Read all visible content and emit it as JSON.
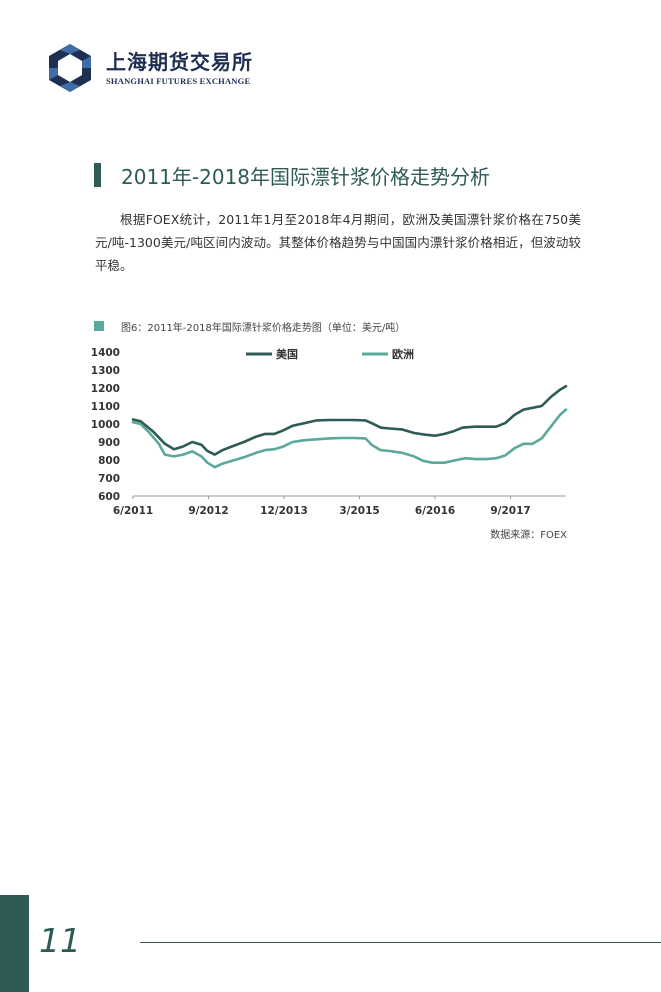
{
  "header": {
    "logo_cn": "上海期货交易所",
    "logo_en": "SHANGHAI FUTURES EXCHANGE",
    "logo_icon": "hexagon-ring-icon"
  },
  "section": {
    "title": "2011年-2018年国际漂针浆价格走势分析",
    "paragraph": "根据FOEX统计，2011年1月至2018年4月期间，欧洲及美国漂针浆价格在750美元/吨-1300美元/吨区间内波动。其整体价格趋势与中国国内漂针浆价格相近，但波动较平稳。"
  },
  "figure": {
    "caption": "图6：2011年-2018年国际漂针浆价格走势图（单位：美元/吨）",
    "source": "数据来源：FOEX"
  },
  "colors": {
    "accent": "#2e5b55",
    "usa": "#2e5b55",
    "europe": "#5ba89c",
    "logo": "#1f2f52"
  },
  "chart_data": {
    "type": "line",
    "title": "",
    "xlabel": "",
    "ylabel": "",
    "ylim": [
      600,
      1400
    ],
    "yticks": [
      600,
      700,
      800,
      900,
      1000,
      1100,
      1200,
      1300,
      1400
    ],
    "xticks": [
      "6/2011",
      "9/2012",
      "12/2013",
      "3/2015",
      "6/2016",
      "9/2017"
    ],
    "xrange": [
      2011.375,
      2018.5
    ],
    "legend": "top",
    "grid": false,
    "series": [
      {
        "name": "美国",
        "color": "#2e5b55",
        "points": [
          [
            2011.375,
            1025
          ],
          [
            2011.5,
            1015
          ],
          [
            2011.7,
            960
          ],
          [
            2011.9,
            890
          ],
          [
            2012.05,
            860
          ],
          [
            2012.2,
            875
          ],
          [
            2012.35,
            900
          ],
          [
            2012.5,
            885
          ],
          [
            2012.6,
            850
          ],
          [
            2012.72,
            830
          ],
          [
            2012.85,
            855
          ],
          [
            2013.0,
            875
          ],
          [
            2013.2,
            900
          ],
          [
            2013.4,
            930
          ],
          [
            2013.55,
            945
          ],
          [
            2013.7,
            945
          ],
          [
            2013.85,
            965
          ],
          [
            2014.0,
            990
          ],
          [
            2014.2,
            1005
          ],
          [
            2014.4,
            1020
          ],
          [
            2014.6,
            1022
          ],
          [
            2014.8,
            1022
          ],
          [
            2015.0,
            1022
          ],
          [
            2015.2,
            1020
          ],
          [
            2015.3,
            1005
          ],
          [
            2015.45,
            980
          ],
          [
            2015.6,
            975
          ],
          [
            2015.8,
            970
          ],
          [
            2016.0,
            950
          ],
          [
            2016.2,
            940
          ],
          [
            2016.35,
            935
          ],
          [
            2016.5,
            945
          ],
          [
            2016.65,
            960
          ],
          [
            2016.8,
            980
          ],
          [
            2017.0,
            985
          ],
          [
            2017.2,
            985
          ],
          [
            2017.35,
            985
          ],
          [
            2017.5,
            1005
          ],
          [
            2017.65,
            1050
          ],
          [
            2017.8,
            1080
          ],
          [
            2017.95,
            1090
          ],
          [
            2018.1,
            1100
          ],
          [
            2018.25,
            1150
          ],
          [
            2018.4,
            1190
          ],
          [
            2018.5,
            1210
          ]
        ]
      },
      {
        "name": "欧洲",
        "color": "#5ba89c",
        "points": [
          [
            2011.375,
            1010
          ],
          [
            2011.5,
            1000
          ],
          [
            2011.65,
            950
          ],
          [
            2011.8,
            890
          ],
          [
            2011.9,
            830
          ],
          [
            2012.05,
            820
          ],
          [
            2012.2,
            830
          ],
          [
            2012.35,
            848
          ],
          [
            2012.5,
            820
          ],
          [
            2012.6,
            785
          ],
          [
            2012.72,
            760
          ],
          [
            2012.85,
            780
          ],
          [
            2013.0,
            795
          ],
          [
            2013.2,
            815
          ],
          [
            2013.4,
            840
          ],
          [
            2013.55,
            855
          ],
          [
            2013.7,
            860
          ],
          [
            2013.85,
            875
          ],
          [
            2014.0,
            900
          ],
          [
            2014.2,
            910
          ],
          [
            2014.4,
            915
          ],
          [
            2014.6,
            920
          ],
          [
            2014.8,
            922
          ],
          [
            2015.0,
            922
          ],
          [
            2015.2,
            920
          ],
          [
            2015.3,
            885
          ],
          [
            2015.45,
            855
          ],
          [
            2015.6,
            850
          ],
          [
            2015.8,
            840
          ],
          [
            2016.0,
            820
          ],
          [
            2016.15,
            795
          ],
          [
            2016.3,
            785
          ],
          [
            2016.5,
            785
          ],
          [
            2016.7,
            800
          ],
          [
            2016.85,
            810
          ],
          [
            2017.0,
            805
          ],
          [
            2017.2,
            805
          ],
          [
            2017.35,
            810
          ],
          [
            2017.5,
            825
          ],
          [
            2017.65,
            865
          ],
          [
            2017.8,
            890
          ],
          [
            2017.95,
            890
          ],
          [
            2018.1,
            920
          ],
          [
            2018.25,
            985
          ],
          [
            2018.4,
            1050
          ],
          [
            2018.5,
            1080
          ]
        ]
      }
    ]
  }
}
